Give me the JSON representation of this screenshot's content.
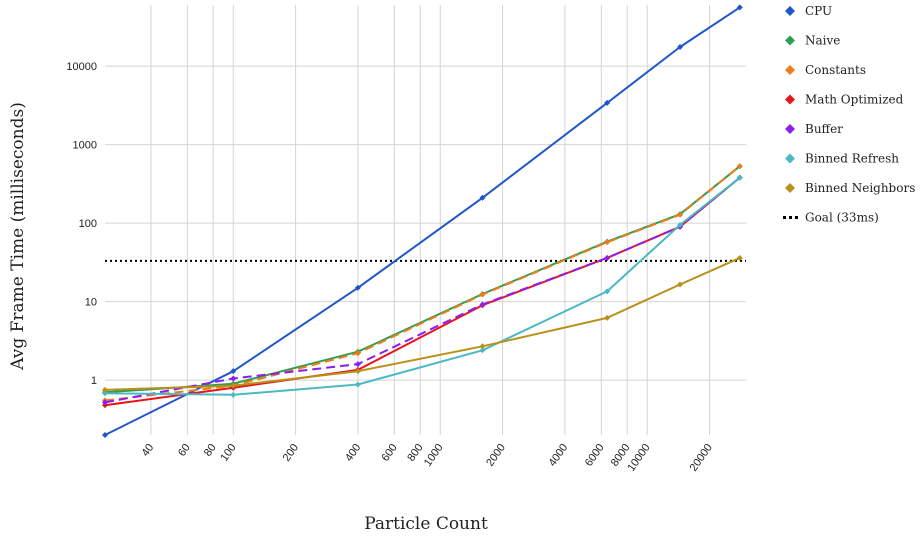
{
  "chart_data": {
    "type": "line",
    "title": "",
    "xlabel": "Particle Count",
    "ylabel": "Avg Frame Time (milliseconds)",
    "x_scale": "log",
    "y_scale": "log",
    "xlim": [
      24,
      30000
    ],
    "ylim": [
      0.2,
      60000
    ],
    "grid": true,
    "legend_position": "right",
    "x_ticks": [
      40,
      60,
      80,
      100,
      200,
      400,
      600,
      800,
      1000,
      2000,
      4000,
      6000,
      8000,
      10000,
      20000
    ],
    "y_ticks": [
      1,
      10,
      100,
      1000,
      10000
    ],
    "goal": {
      "name": "Goal (33ms)",
      "value": 33,
      "color": "#000000"
    },
    "series": [
      {
        "name": "CPU",
        "color": "#1f56c8",
        "dashed": false,
        "x": [
          24,
          100,
          400,
          1600,
          6400,
          14400,
          28000
        ],
        "y": [
          0.2,
          1.3,
          15,
          210,
          3400,
          17500,
          56000
        ]
      },
      {
        "name": "Naive",
        "color": "#2e9e4f",
        "dashed": false,
        "x": [
          24,
          100,
          400,
          1600,
          6400,
          14400,
          28000
        ],
        "y": [
          0.7,
          0.9,
          2.3,
          12.5,
          58,
          130,
          530
        ]
      },
      {
        "name": "Constants",
        "color": "#f07b1d",
        "dashed": true,
        "x": [
          24,
          100,
          400,
          1600,
          6400,
          14400,
          28000
        ],
        "y": [
          0.55,
          0.85,
          2.2,
          12.3,
          57,
          128,
          530
        ]
      },
      {
        "name": "Math Optimized",
        "color": "#e8141e",
        "dashed": false,
        "x": [
          24,
          100,
          400,
          1600,
          6400,
          14400,
          28000
        ],
        "y": [
          0.48,
          0.8,
          1.35,
          9.0,
          36,
          90,
          380
        ]
      },
      {
        "name": "Buffer",
        "color": "#8b1ef0",
        "dashed": true,
        "x": [
          24,
          100,
          400,
          1600,
          6400,
          14400,
          28000
        ],
        "y": [
          0.52,
          1.05,
          1.6,
          9.2,
          36,
          90,
          380
        ]
      },
      {
        "name": "Binned Refresh",
        "color": "#4bb8c6",
        "dashed": false,
        "x": [
          24,
          100,
          400,
          1600,
          6400,
          14400,
          28000
        ],
        "y": [
          0.68,
          0.65,
          0.88,
          2.4,
          13.5,
          95,
          380
        ]
      },
      {
        "name": "Binned Neighbors",
        "color": "#b8911a",
        "dashed": false,
        "x": [
          24,
          100,
          400,
          1600,
          6400,
          14400,
          28000
        ],
        "y": [
          0.75,
          0.85,
          1.3,
          2.7,
          6.2,
          16.5,
          36
        ]
      }
    ]
  }
}
